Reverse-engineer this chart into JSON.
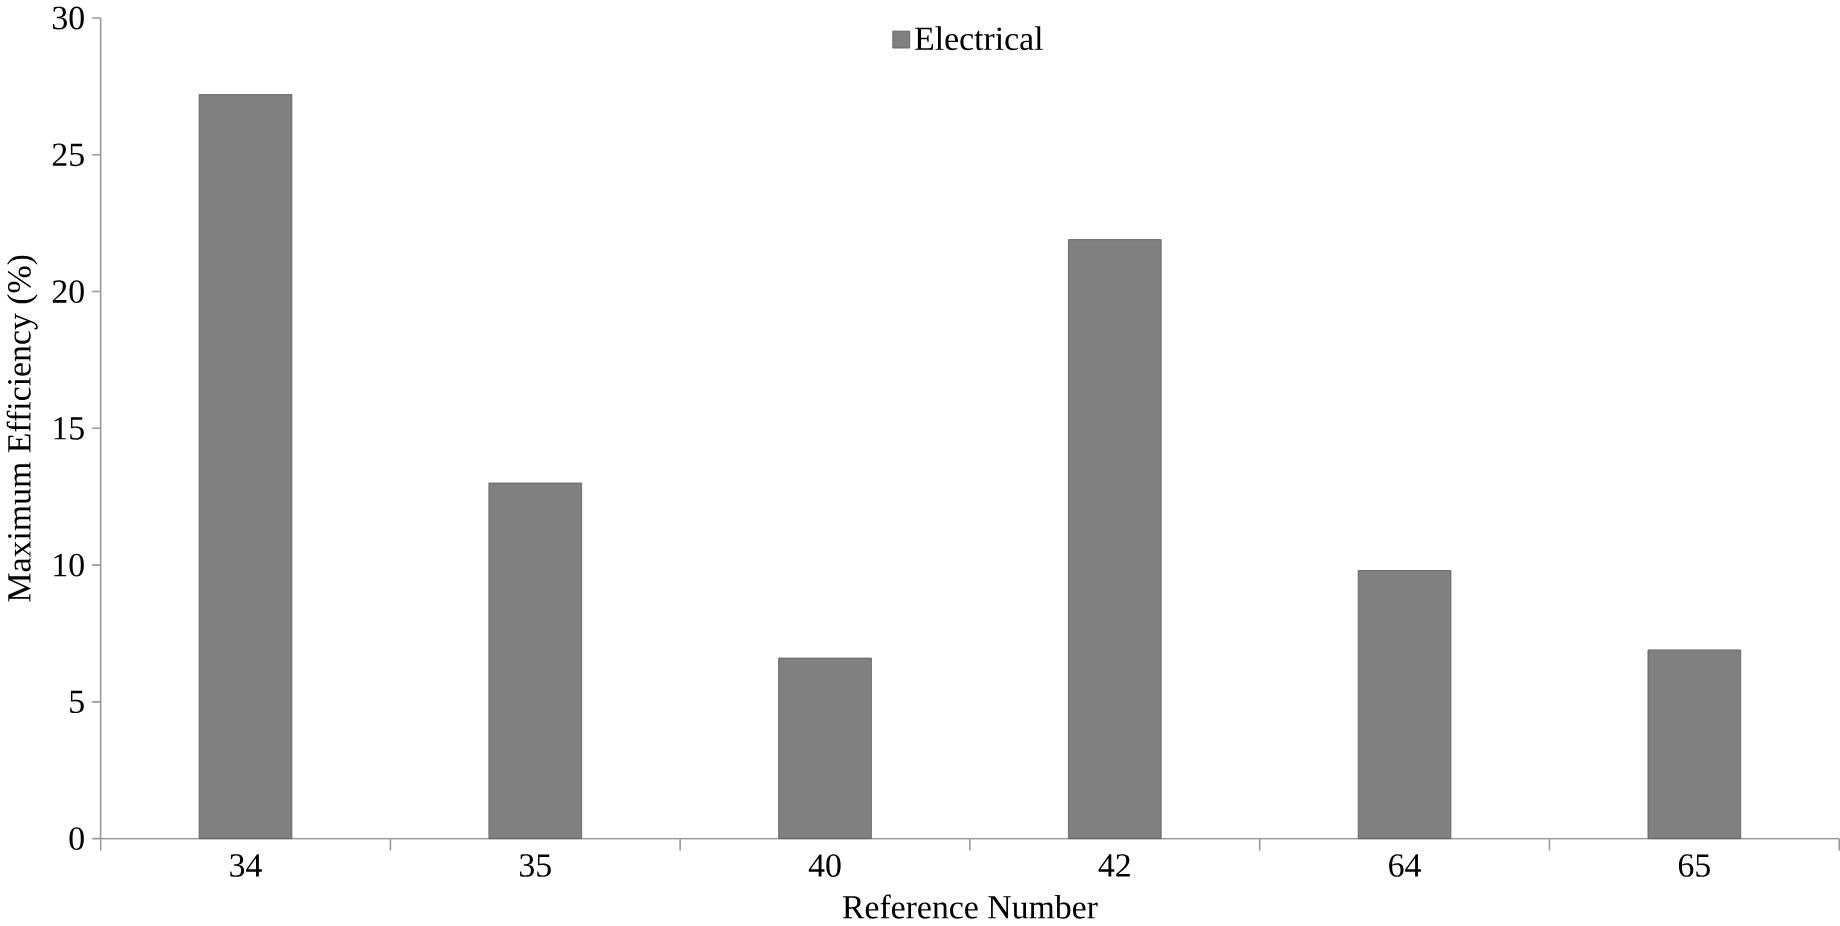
{
  "chart_data": {
    "type": "bar",
    "xlabel": "Reference Number",
    "ylabel": "Maximum Efficiency (%)",
    "categories": [
      "34",
      "35",
      "40",
      "42",
      "64",
      "65"
    ],
    "series": [
      {
        "name": "Electrical",
        "color": "#808080",
        "values": [
          27.2,
          13.0,
          6.6,
          21.9,
          9.8,
          6.9
        ]
      }
    ],
    "ylim": [
      0,
      30
    ],
    "yticks": [
      0,
      5,
      10,
      15,
      20,
      25,
      30
    ],
    "grid": false,
    "legend": "top"
  }
}
